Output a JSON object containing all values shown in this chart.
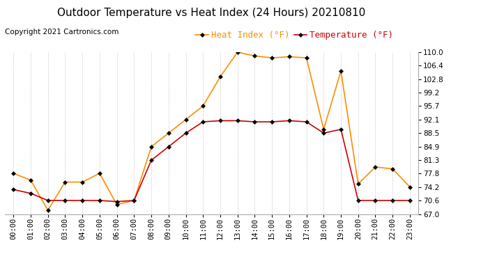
{
  "title": "Outdoor Temperature vs Heat Index (24 Hours) 20210810",
  "copyright": "Copyright 2021 Cartronics.com",
  "legend_heat": "Heat Index (°F)",
  "legend_temp": "Temperature (°F)",
  "hours": [
    "00:00",
    "01:00",
    "02:00",
    "03:00",
    "04:00",
    "05:00",
    "06:00",
    "07:00",
    "08:00",
    "09:00",
    "10:00",
    "11:00",
    "12:00",
    "13:00",
    "14:00",
    "15:00",
    "16:00",
    "17:00",
    "18:00",
    "19:00",
    "20:00",
    "21:00",
    "22:00",
    "23:00"
  ],
  "heat_index": [
    77.8,
    76.0,
    68.0,
    75.5,
    75.5,
    77.8,
    69.5,
    70.6,
    84.9,
    88.5,
    92.1,
    95.7,
    103.5,
    110.0,
    109.0,
    108.5,
    108.8,
    108.5,
    89.5,
    105.0,
    75.0,
    79.5,
    79.0,
    74.2
  ],
  "temperature": [
    73.5,
    72.5,
    70.6,
    70.6,
    70.6,
    70.6,
    70.3,
    70.6,
    81.3,
    84.9,
    88.5,
    91.5,
    91.8,
    91.8,
    91.5,
    91.5,
    91.8,
    91.5,
    88.5,
    89.5,
    70.6,
    70.6,
    70.6,
    70.6
  ],
  "heat_color": "#FF8C00",
  "temp_color": "#CC0000",
  "marker_color": "#000000",
  "ylim_min": 67.0,
  "ylim_max": 110.0,
  "yticks": [
    67.0,
    70.6,
    74.2,
    77.8,
    81.3,
    84.9,
    88.5,
    92.1,
    95.7,
    99.2,
    102.8,
    106.4,
    110.0
  ],
  "background_color": "#ffffff",
  "grid_color": "#cccccc",
  "title_fontsize": 11,
  "copyright_fontsize": 7.5,
  "legend_fontsize": 9,
  "tick_fontsize": 7.5
}
